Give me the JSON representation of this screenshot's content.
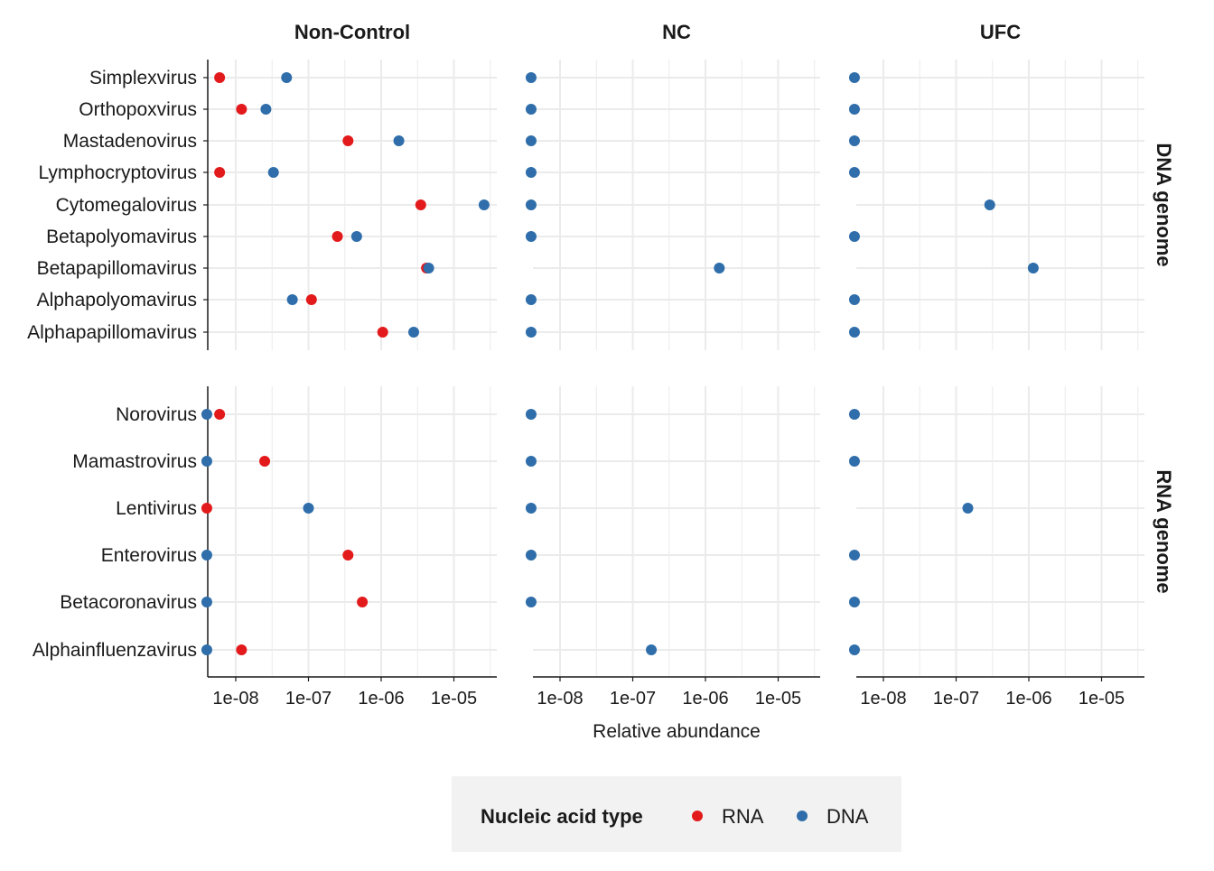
{
  "chart_data": {
    "type": "scatter",
    "xlabel": "Relative abundance",
    "x_scale": "log10",
    "x_ticks": [
      "1e-08",
      "1e-07",
      "1e-06",
      "1e-05"
    ],
    "xlim": [
      4e-09,
      5e-05
    ],
    "columns": [
      "Non-Control",
      "NC",
      "UFC"
    ],
    "rows": [
      {
        "label": "DNA genome",
        "categories": [
          "Simplexvirus",
          "Orthopoxvirus",
          "Mastadenovirus",
          "Lymphocryptovirus",
          "Cytomegalovirus",
          "Betapolyomavirus",
          "Betapapillomavirus",
          "Alphapolyomavirus",
          "Alphapapillomavirus"
        ]
      },
      {
        "label": "RNA genome",
        "categories": [
          "Norovirus",
          "Mamastrovirus",
          "Lentivirus",
          "Enterovirus",
          "Betacoronavirus",
          "Alphainfluenzavirus"
        ]
      }
    ],
    "legend": {
      "title": "Nucleic acid type",
      "position": "bottom",
      "items": [
        "RNA",
        "DNA"
      ]
    },
    "colors": {
      "RNA": "#e31a1c",
      "DNA": "#2f6eaa",
      "grid": "#ebebeb",
      "legend_bg": "#f2f2f2"
    },
    "series": [
      {
        "name": "RNA",
        "points": [
          {
            "row": "DNA genome",
            "column": "Non-Control",
            "category": "Simplexvirus",
            "x": 6e-09
          },
          {
            "row": "DNA genome",
            "column": "Non-Control",
            "category": "Orthopoxvirus",
            "x": 1.2e-08
          },
          {
            "row": "DNA genome",
            "column": "Non-Control",
            "category": "Mastadenovirus",
            "x": 3.5e-07
          },
          {
            "row": "DNA genome",
            "column": "Non-Control",
            "category": "Lymphocryptovirus",
            "x": 6e-09
          },
          {
            "row": "DNA genome",
            "column": "Non-Control",
            "category": "Cytomegalovirus",
            "x": 3.5e-06
          },
          {
            "row": "DNA genome",
            "column": "Non-Control",
            "category": "Betapolyomavirus",
            "x": 2.5e-07
          },
          {
            "row": "DNA genome",
            "column": "Non-Control",
            "category": "Betapapillomavirus",
            "x": 4.2e-06
          },
          {
            "row": "DNA genome",
            "column": "Non-Control",
            "category": "Alphapolyomavirus",
            "x": 1.1e-07
          },
          {
            "row": "DNA genome",
            "column": "Non-Control",
            "category": "Alphapapillomavirus",
            "x": 1.05e-06
          },
          {
            "row": "RNA genome",
            "column": "Non-Control",
            "category": "Norovirus",
            "x": 6e-09
          },
          {
            "row": "RNA genome",
            "column": "Non-Control",
            "category": "Mamastrovirus",
            "x": 2.5e-08
          },
          {
            "row": "RNA genome",
            "column": "Non-Control",
            "category": "Lentivirus",
            "x": 4e-09
          },
          {
            "row": "RNA genome",
            "column": "Non-Control",
            "category": "Enterovirus",
            "x": 3.5e-07
          },
          {
            "row": "RNA genome",
            "column": "Non-Control",
            "category": "Betacoronavirus",
            "x": 5.5e-07
          },
          {
            "row": "RNA genome",
            "column": "Non-Control",
            "category": "Alphainfluenzavirus",
            "x": 1.2e-08
          }
        ]
      },
      {
        "name": "DNA",
        "points": [
          {
            "row": "DNA genome",
            "column": "Non-Control",
            "category": "Simplexvirus",
            "x": 5e-08
          },
          {
            "row": "DNA genome",
            "column": "Non-Control",
            "category": "Orthopoxvirus",
            "x": 2.6e-08
          },
          {
            "row": "DNA genome",
            "column": "Non-Control",
            "category": "Mastadenovirus",
            "x": 1.75e-06
          },
          {
            "row": "DNA genome",
            "column": "Non-Control",
            "category": "Lymphocryptovirus",
            "x": 3.3e-08
          },
          {
            "row": "DNA genome",
            "column": "Non-Control",
            "category": "Cytomegalovirus",
            "x": 2.6e-05
          },
          {
            "row": "DNA genome",
            "column": "Non-Control",
            "category": "Betapolyomavirus",
            "x": 4.6e-07
          },
          {
            "row": "DNA genome",
            "column": "Non-Control",
            "category": "Betapapillomavirus",
            "x": 4.5e-06
          },
          {
            "row": "DNA genome",
            "column": "Non-Control",
            "category": "Alphapolyomavirus",
            "x": 6e-08
          },
          {
            "row": "DNA genome",
            "column": "Non-Control",
            "category": "Alphapapillomavirus",
            "x": 2.8e-06
          },
          {
            "row": "RNA genome",
            "column": "Non-Control",
            "category": "Norovirus",
            "x": 4e-09
          },
          {
            "row": "RNA genome",
            "column": "Non-Control",
            "category": "Mamastrovirus",
            "x": 4e-09
          },
          {
            "row": "RNA genome",
            "column": "Non-Control",
            "category": "Lentivirus",
            "x": 1e-07
          },
          {
            "row": "RNA genome",
            "column": "Non-Control",
            "category": "Enterovirus",
            "x": 4e-09
          },
          {
            "row": "RNA genome",
            "column": "Non-Control",
            "category": "Betacoronavirus",
            "x": 4e-09
          },
          {
            "row": "RNA genome",
            "column": "Non-Control",
            "category": "Alphainfluenzavirus",
            "x": 4e-09
          },
          {
            "row": "DNA genome",
            "column": "NC",
            "category": "Simplexvirus",
            "x": 4e-09
          },
          {
            "row": "DNA genome",
            "column": "NC",
            "category": "Orthopoxvirus",
            "x": 4e-09
          },
          {
            "row": "DNA genome",
            "column": "NC",
            "category": "Mastadenovirus",
            "x": 4e-09
          },
          {
            "row": "DNA genome",
            "column": "NC",
            "category": "Lymphocryptovirus",
            "x": 4e-09
          },
          {
            "row": "DNA genome",
            "column": "NC",
            "category": "Cytomegalovirus",
            "x": 4e-09
          },
          {
            "row": "DNA genome",
            "column": "NC",
            "category": "Betapolyomavirus",
            "x": 4e-09
          },
          {
            "row": "DNA genome",
            "column": "NC",
            "category": "Betapapillomavirus",
            "x": 1.55e-06
          },
          {
            "row": "DNA genome",
            "column": "NC",
            "category": "Alphapolyomavirus",
            "x": 4e-09
          },
          {
            "row": "DNA genome",
            "column": "NC",
            "category": "Alphapapillomavirus",
            "x": 4e-09
          },
          {
            "row": "RNA genome",
            "column": "NC",
            "category": "Norovirus",
            "x": 4e-09
          },
          {
            "row": "RNA genome",
            "column": "NC",
            "category": "Mamastrovirus",
            "x": 4e-09
          },
          {
            "row": "RNA genome",
            "column": "NC",
            "category": "Lentivirus",
            "x": 4e-09
          },
          {
            "row": "RNA genome",
            "column": "NC",
            "category": "Enterovirus",
            "x": 4e-09
          },
          {
            "row": "RNA genome",
            "column": "NC",
            "category": "Betacoronavirus",
            "x": 4e-09
          },
          {
            "row": "RNA genome",
            "column": "NC",
            "category": "Alphainfluenzavirus",
            "x": 1.8e-07
          },
          {
            "row": "DNA genome",
            "column": "UFC",
            "category": "Simplexvirus",
            "x": 4e-09
          },
          {
            "row": "DNA genome",
            "column": "UFC",
            "category": "Orthopoxvirus",
            "x": 4e-09
          },
          {
            "row": "DNA genome",
            "column": "UFC",
            "category": "Mastadenovirus",
            "x": 4e-09
          },
          {
            "row": "DNA genome",
            "column": "UFC",
            "category": "Lymphocryptovirus",
            "x": 4e-09
          },
          {
            "row": "DNA genome",
            "column": "UFC",
            "category": "Cytomegalovirus",
            "x": 2.9e-07
          },
          {
            "row": "DNA genome",
            "column": "UFC",
            "category": "Betapolyomavirus",
            "x": 4e-09
          },
          {
            "row": "DNA genome",
            "column": "UFC",
            "category": "Betapapillomavirus",
            "x": 1.15e-06
          },
          {
            "row": "DNA genome",
            "column": "UFC",
            "category": "Alphapolyomavirus",
            "x": 4e-09
          },
          {
            "row": "DNA genome",
            "column": "UFC",
            "category": "Alphapapillomavirus",
            "x": 4e-09
          },
          {
            "row": "RNA genome",
            "column": "UFC",
            "category": "Norovirus",
            "x": 4e-09
          },
          {
            "row": "RNA genome",
            "column": "UFC",
            "category": "Mamastrovirus",
            "x": 4e-09
          },
          {
            "row": "RNA genome",
            "column": "UFC",
            "category": "Lentivirus",
            "x": 1.45e-07
          },
          {
            "row": "RNA genome",
            "column": "UFC",
            "category": "Enterovirus",
            "x": 4e-09
          },
          {
            "row": "RNA genome",
            "column": "UFC",
            "category": "Betacoronavirus",
            "x": 4e-09
          },
          {
            "row": "RNA genome",
            "column": "UFC",
            "category": "Alphainfluenzavirus",
            "x": 4e-09
          }
        ]
      }
    ]
  }
}
